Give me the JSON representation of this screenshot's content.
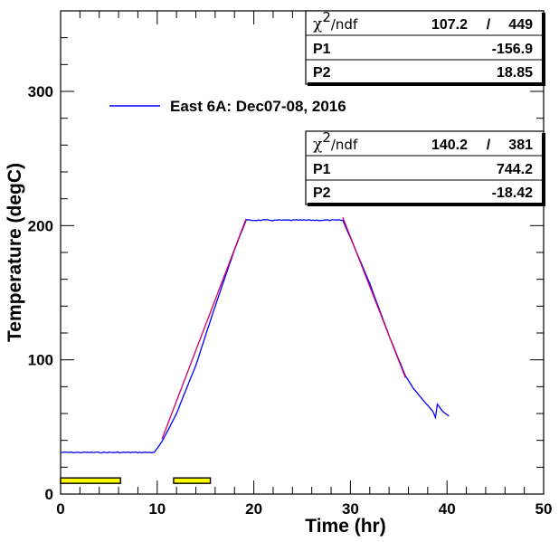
{
  "chart_data": {
    "type": "line",
    "xlabel": "Time (hr)",
    "ylabel": "Temperature (degC)",
    "xlim": [
      0,
      50
    ],
    "ylim": [
      0,
      360
    ],
    "x_ticks": [
      0,
      10,
      20,
      30,
      40,
      50
    ],
    "y_ticks": [
      0,
      100,
      200,
      300
    ],
    "grid": false,
    "legend_position": "upper-left",
    "series": [
      {
        "name": "East 6A: Dec07-08, 2016",
        "color": "#0000ff",
        "x": [
          0,
          5,
          9.7,
          10.5,
          12,
          14,
          16,
          18,
          19.2,
          22,
          25,
          29.2,
          30,
          32,
          34,
          35.7,
          36.5,
          37.5,
          38.5,
          38.8,
          39.0,
          39.5,
          40.2
        ],
        "y": [
          31,
          31,
          31,
          39,
          60,
          96,
          140,
          182,
          204,
          204,
          204,
          204,
          191,
          157,
          118,
          88,
          79,
          70,
          62,
          57,
          67,
          62,
          58
        ]
      }
    ],
    "fits": [
      {
        "name": "fit-1",
        "color": "#cc0066",
        "x_range": [
          10.5,
          19.2
        ],
        "p1": -156.9,
        "p2": 18.85
      },
      {
        "name": "fit-2",
        "color": "#cc0066",
        "x_range": [
          29.2,
          35.7
        ],
        "p1": 744.2,
        "p2": -18.42
      }
    ],
    "markers": [
      {
        "x_range": [
          0,
          6.2
        ],
        "y": 10,
        "color": "#ffff00"
      },
      {
        "x_range": [
          11.7,
          15.5
        ],
        "y": 10,
        "color": "#ffff00"
      }
    ]
  },
  "stats_boxes": [
    {
      "chi_symbol": "χ",
      "chi_sup": "2",
      "chi_suffix": "/ndf",
      "chi_value": "107.2",
      "chi_sep": "/",
      "ndf": "449",
      "rows": [
        {
          "label": "P1",
          "value": "-156.9"
        },
        {
          "label": "P2",
          "value": "18.85"
        }
      ]
    },
    {
      "chi_symbol": "χ",
      "chi_sup": "2",
      "chi_suffix": "/ndf",
      "chi_value": "140.2",
      "chi_sep": "/",
      "ndf": "381",
      "rows": [
        {
          "label": "P1",
          "value": "744.2"
        },
        {
          "label": "P2",
          "value": "-18.42"
        }
      ]
    }
  ]
}
